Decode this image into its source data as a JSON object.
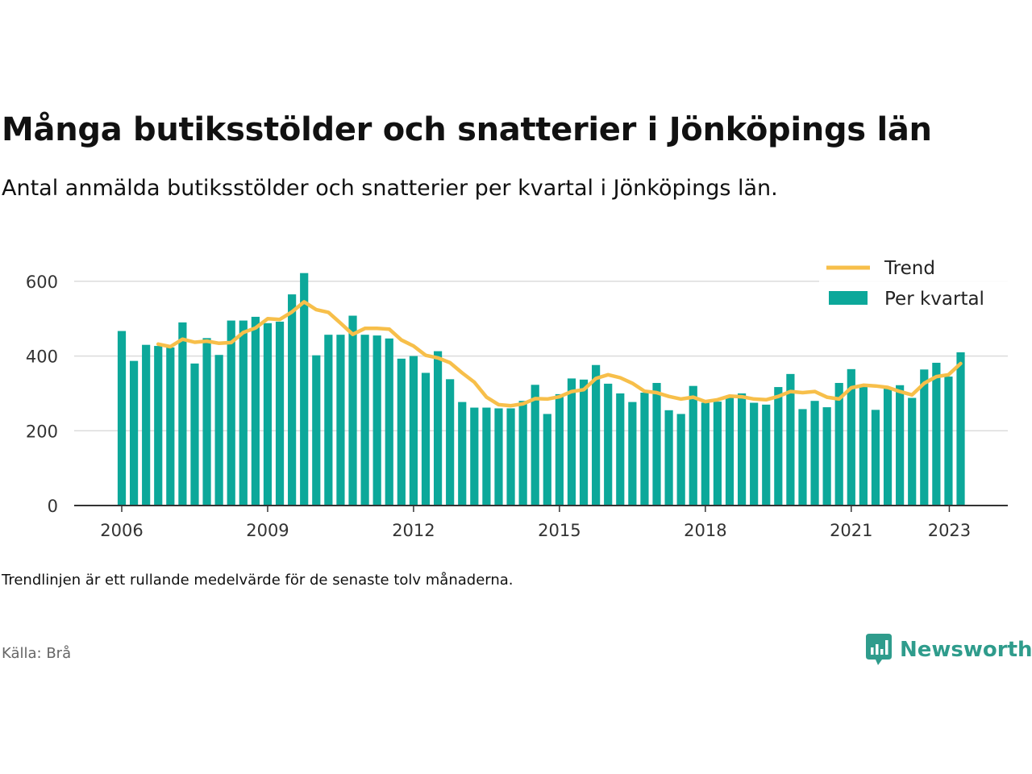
{
  "title": "Många butiksstölder och snatterier i Jönköpings län",
  "subtitle": "Antal anmälda butiksstölder och snatterier per kvartal i Jönköpings län.",
  "note": "Trendlinjen är ett rullande medelvärde för de senaste tolv månaderna.",
  "source": "Källa: Brå",
  "brand": {
    "name": "Newsworthy",
    "icon": "newsworthy-logo-icon",
    "color": "#2f9c8c"
  },
  "chart_data": {
    "type": "bar",
    "x_start": "2006 Q1",
    "x_end": "2023 Q2",
    "x_ticks": [
      "2006",
      "2009",
      "2012",
      "2015",
      "2018",
      "2021",
      "2023"
    ],
    "y_ticks": [
      "0",
      "200",
      "400",
      "600"
    ],
    "ylim": [
      0,
      680
    ],
    "grid": true,
    "legend_position": "top-right",
    "series": [
      {
        "name": "Per kvartal",
        "type": "bar",
        "color": "#0ca89a",
        "values": [
          467,
          387,
          430,
          427,
          423,
          490,
          380,
          448,
          403,
          495,
          495,
          505,
          488,
          492,
          565,
          622,
          402,
          457,
          457,
          508,
          457,
          455,
          447,
          393,
          400,
          355,
          413,
          338,
          277,
          262,
          262,
          260,
          260,
          280,
          323,
          245,
          298,
          340,
          337,
          376,
          326,
          300,
          277,
          302,
          328,
          255,
          245,
          320,
          275,
          278,
          290,
          300,
          275,
          270,
          317,
          352,
          258,
          280,
          263,
          328,
          365,
          318,
          256,
          315,
          322,
          288,
          364,
          382,
          345,
          410
        ]
      },
      {
        "name": "Trend",
        "type": "line",
        "color": "#f7bf4a",
        "values": [
          null,
          null,
          null,
          432,
          425,
          445,
          437,
          440,
          434,
          436,
          463,
          475,
          500,
          498,
          518,
          545,
          524,
          517,
          488,
          458,
          474,
          474,
          472,
          443,
          427,
          402,
          395,
          382,
          355,
          330,
          290,
          270,
          267,
          272,
          286,
          285,
          291,
          305,
          310,
          340,
          350,
          342,
          327,
          306,
          302,
          292,
          285,
          290,
          278,
          283,
          293,
          291,
          285,
          283,
          292,
          305,
          302,
          305,
          290,
          285,
          315,
          322,
          320,
          316,
          305,
          296,
          327,
          345,
          350,
          380
        ]
      }
    ]
  }
}
